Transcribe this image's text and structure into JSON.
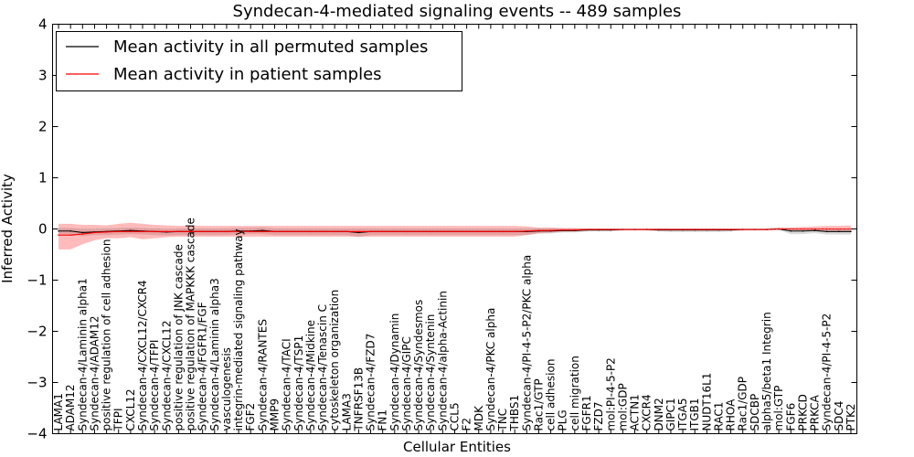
{
  "chart_data": {
    "type": "line",
    "title": "Syndecan-4-mediated signaling events -- 489 samples",
    "xlabel": "Cellular Entities",
    "ylabel": "Inferred Activity",
    "ylim": [
      -4,
      4
    ],
    "yticks": [
      -4,
      -3,
      -2,
      -1,
      0,
      1,
      2,
      3,
      4
    ],
    "ytick_labels": [
      "−4",
      "−3",
      "−2",
      "−1",
      "0",
      "1",
      "2",
      "3",
      "4"
    ],
    "legend": {
      "placement": "top-left",
      "entries": [
        {
          "label": "Mean activity in all permuted samples",
          "color": "#000000"
        },
        {
          "label": "Mean activity in patient samples",
          "color": "#ff0000"
        }
      ]
    },
    "categories": [
      "LAMA1",
      "ADAM12",
      "Syndecan-4/Laminin alpha1",
      "Syndecan-4/ADAM12",
      "positive regulation of cell adhesion",
      "TFPI",
      "CXCL12",
      "Syndecan-4/CXCL12/CXCR4",
      "Syndecan-4/TFPI",
      "Syndecan-4/CXCL12",
      "positive regulation of JNK cascade",
      "positive regulation of MAPKKK cascade",
      "Syndecan-4/FGFR1/FGF",
      "Syndecan-4/Laminin alpha3",
      "vasculogenesis",
      "integrin-mediated signaling pathway",
      "FGF2",
      "Syndecan-4/RANTES",
      "MMP9",
      "Syndecan-4/TACI",
      "Syndecan-4/TSP1",
      "Syndecan-4/Midkine",
      "Syndecan-4/Tenascin C",
      "cytoskeleton organization",
      "LAMA3",
      "TNFRSF13B",
      "Syndecan-4/FZD7",
      "FN1",
      "Syndecan-4/Dynamin",
      "Syndecan-4/GIPC",
      "Syndecan-4/Syndesmos",
      "Syndecan-4/Syntenin",
      "Syndecan-4/alpha-Actinin",
      "CCL5",
      "F2",
      "MDK",
      "Syndecan-4/PKC alpha",
      "TNC",
      "THBS1",
      "Syndecan-4/PI-4-5-P2/PKC alpha",
      "Rac1/GTP",
      "cell adhesion",
      "PLG",
      "cell migration",
      "FGFR1",
      "FZD7",
      "mol:PI-4-5-P2",
      "mol:GDP",
      "ACTN1",
      "CXCR4",
      "DNM2",
      "GIPC1",
      "ITGA5",
      "ITGB1",
      "NUDT16L1",
      "RAC1",
      "RHOA",
      "Rac1/GDP",
      "SDCBP",
      "alpha5/beta1 Integrin",
      "mol:GTP",
      "FGF6",
      "PRKCD",
      "PRKCA",
      "Syndecan-4/PI-4-5-P2",
      "SDC4",
      "PTK2"
    ],
    "series": [
      {
        "name": "Mean activity in all permuted samples",
        "color": "#000000",
        "values": [
          -0.04,
          -0.04,
          -0.07,
          -0.06,
          -0.05,
          -0.04,
          -0.03,
          -0.04,
          -0.05,
          -0.06,
          -0.05,
          -0.05,
          -0.05,
          -0.05,
          -0.05,
          -0.04,
          -0.04,
          -0.03,
          -0.05,
          -0.05,
          -0.05,
          -0.05,
          -0.05,
          -0.05,
          -0.05,
          -0.07,
          -0.05,
          -0.05,
          -0.05,
          -0.05,
          -0.05,
          -0.05,
          -0.05,
          -0.05,
          -0.05,
          -0.05,
          -0.05,
          -0.05,
          -0.05,
          -0.05,
          -0.04,
          -0.04,
          -0.03,
          -0.03,
          -0.02,
          -0.02,
          -0.02,
          -0.01,
          -0.01,
          -0.01,
          -0.02,
          -0.02,
          -0.02,
          -0.02,
          -0.02,
          -0.02,
          -0.02,
          -0.01,
          -0.01,
          -0.01,
          0.0,
          -0.04,
          -0.04,
          -0.03,
          -0.05,
          -0.05,
          -0.05
        ],
        "lower": [
          -0.1,
          -0.1,
          -0.14,
          -0.12,
          -0.12,
          -0.11,
          -0.1,
          -0.11,
          -0.12,
          -0.13,
          -0.12,
          -0.12,
          -0.12,
          -0.12,
          -0.12,
          -0.11,
          -0.1,
          -0.1,
          -0.12,
          -0.12,
          -0.12,
          -0.12,
          -0.12,
          -0.12,
          -0.12,
          -0.16,
          -0.12,
          -0.12,
          -0.12,
          -0.12,
          -0.12,
          -0.12,
          -0.12,
          -0.12,
          -0.12,
          -0.12,
          -0.12,
          -0.12,
          -0.12,
          -0.12,
          -0.09,
          -0.09,
          -0.07,
          -0.07,
          -0.05,
          -0.05,
          -0.05,
          -0.03,
          -0.03,
          -0.03,
          -0.05,
          -0.06,
          -0.06,
          -0.06,
          -0.06,
          -0.06,
          -0.05,
          -0.03,
          -0.03,
          -0.03,
          -0.02,
          -0.1,
          -0.1,
          -0.08,
          -0.11,
          -0.11,
          -0.11
        ],
        "upper": [
          0.02,
          0.02,
          0.0,
          0.0,
          0.01,
          0.02,
          0.03,
          0.02,
          0.01,
          0.0,
          0.01,
          0.01,
          0.01,
          0.01,
          0.01,
          0.02,
          0.02,
          0.03,
          0.01,
          0.01,
          0.01,
          0.01,
          0.01,
          0.01,
          0.01,
          0.01,
          0.01,
          0.01,
          0.01,
          0.01,
          0.01,
          0.01,
          0.01,
          0.01,
          0.01,
          0.01,
          0.01,
          0.01,
          0.01,
          0.01,
          0.01,
          0.01,
          0.01,
          0.01,
          0.01,
          0.01,
          0.01,
          0.01,
          0.01,
          0.01,
          0.01,
          0.01,
          0.01,
          0.01,
          0.01,
          0.01,
          0.01,
          0.01,
          0.01,
          0.01,
          0.02,
          0.01,
          0.01,
          0.01,
          0.01,
          0.01,
          0.01
        ]
      },
      {
        "name": "Mean activity in patient samples",
        "color": "#ff0000",
        "values": [
          -0.12,
          -0.12,
          -0.1,
          -0.07,
          -0.06,
          -0.05,
          -0.05,
          -0.05,
          -0.05,
          -0.05,
          -0.05,
          -0.05,
          -0.05,
          -0.05,
          -0.05,
          -0.05,
          -0.05,
          -0.05,
          -0.05,
          -0.05,
          -0.05,
          -0.05,
          -0.05,
          -0.05,
          -0.05,
          -0.05,
          -0.05,
          -0.05,
          -0.05,
          -0.05,
          -0.05,
          -0.05,
          -0.05,
          -0.05,
          -0.05,
          -0.05,
          -0.05,
          -0.05,
          -0.05,
          -0.04,
          -0.03,
          -0.03,
          -0.02,
          -0.02,
          -0.01,
          -0.01,
          -0.01,
          -0.01,
          -0.01,
          -0.01,
          -0.01,
          -0.01,
          -0.01,
          -0.01,
          -0.01,
          -0.01,
          -0.01,
          -0.01,
          -0.01,
          -0.01,
          0.0,
          0.0,
          0.0,
          0.0,
          0.0,
          0.0,
          0.0
        ],
        "lower": [
          -0.4,
          -0.4,
          -0.3,
          -0.22,
          -0.18,
          -0.18,
          -0.16,
          -0.2,
          -0.18,
          -0.16,
          -0.15,
          -0.15,
          -0.15,
          -0.15,
          -0.15,
          -0.15,
          -0.15,
          -0.15,
          -0.15,
          -0.15,
          -0.15,
          -0.15,
          -0.15,
          -0.15,
          -0.15,
          -0.15,
          -0.15,
          -0.15,
          -0.15,
          -0.15,
          -0.15,
          -0.15,
          -0.15,
          -0.15,
          -0.15,
          -0.15,
          -0.15,
          -0.15,
          -0.15,
          -0.12,
          -0.08,
          -0.07,
          -0.05,
          -0.05,
          -0.03,
          -0.03,
          -0.03,
          -0.02,
          -0.02,
          -0.02,
          -0.03,
          -0.03,
          -0.03,
          -0.03,
          -0.03,
          -0.03,
          -0.03,
          -0.02,
          -0.02,
          -0.02,
          -0.02,
          -0.03,
          -0.03,
          -0.03,
          -0.04,
          -0.04,
          -0.04
        ],
        "upper": [
          0.1,
          0.1,
          0.08,
          0.08,
          0.07,
          0.1,
          0.12,
          0.1,
          0.08,
          0.07,
          0.06,
          0.07,
          0.06,
          0.06,
          0.06,
          0.06,
          0.06,
          0.06,
          0.06,
          0.06,
          0.06,
          0.06,
          0.06,
          0.06,
          0.06,
          0.06,
          0.06,
          0.06,
          0.06,
          0.06,
          0.06,
          0.06,
          0.06,
          0.06,
          0.06,
          0.06,
          0.06,
          0.06,
          0.06,
          0.05,
          0.03,
          0.03,
          0.02,
          0.02,
          0.01,
          0.01,
          0.01,
          0.01,
          0.01,
          0.01,
          0.01,
          0.01,
          0.01,
          0.01,
          0.01,
          0.01,
          0.01,
          0.01,
          0.01,
          0.01,
          0.03,
          0.03,
          0.04,
          0.05,
          0.06,
          0.06,
          0.07
        ]
      }
    ]
  }
}
